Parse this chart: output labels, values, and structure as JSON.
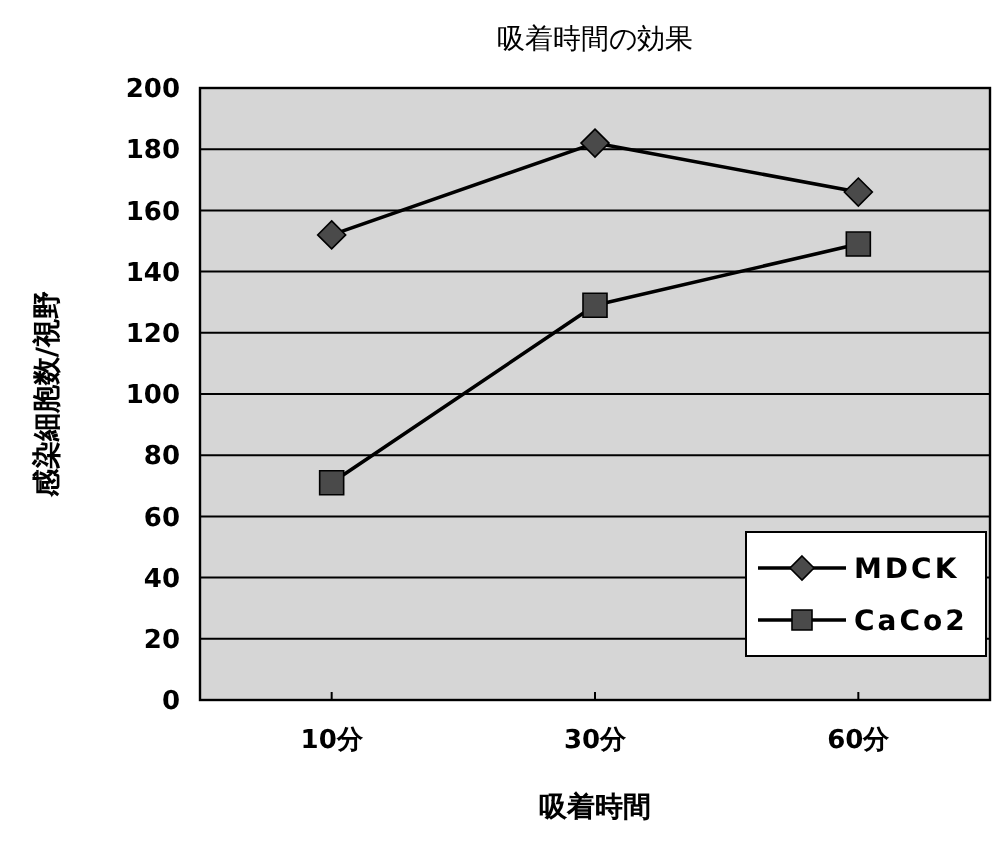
{
  "chart_data": {
    "type": "line",
    "title": "吸着時間の効果",
    "xlabel": "吸着時間",
    "ylabel": "感染細胞数/視野",
    "categories": [
      "10分",
      "30分",
      "60分"
    ],
    "series": [
      {
        "name": "MDCK",
        "color": "#4a4a4a",
        "marker": "diamond",
        "values": [
          152,
          182,
          166
        ]
      },
      {
        "name": "CaCo2",
        "color": "#4a4a4a",
        "marker": "square",
        "values": [
          71,
          129,
          149
        ]
      }
    ],
    "ylim": [
      0,
      200
    ],
    "yticks": [
      0,
      20,
      40,
      60,
      80,
      100,
      120,
      140,
      160,
      180,
      200
    ],
    "grid": "y",
    "legend": "bottom right"
  }
}
